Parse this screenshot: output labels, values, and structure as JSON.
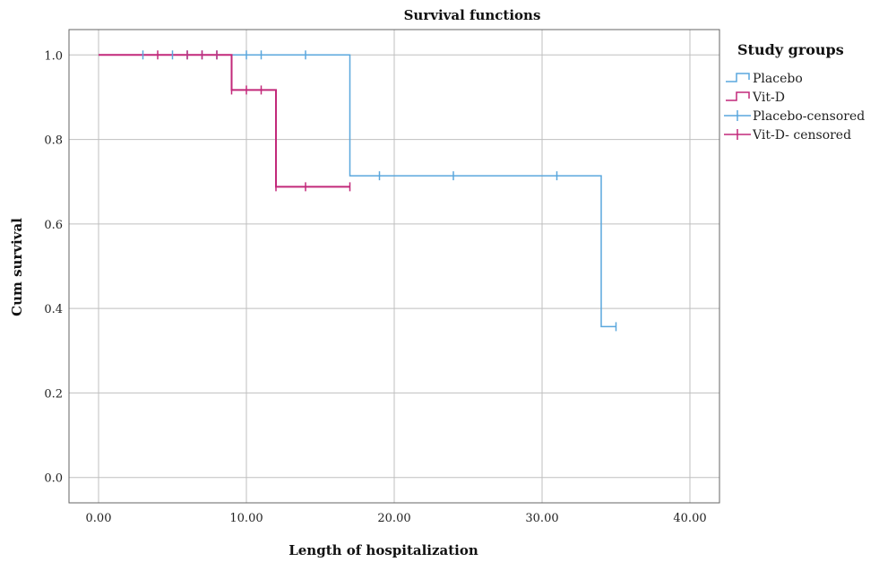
{
  "chart_data": {
    "type": "line",
    "title": "Survival functions",
    "xlabel": "Length of hospitalization",
    "ylabel": "Cum survival",
    "xlim": [
      -2,
      42
    ],
    "ylim": [
      -0.06,
      1.06
    ],
    "x_ticks": [
      0,
      10,
      20,
      30,
      40
    ],
    "x_tick_labels": [
      "0.00",
      "10.00",
      "20.00",
      "30.00",
      "40.00"
    ],
    "y_ticks": [
      0,
      0.2,
      0.4,
      0.6,
      0.8,
      1.0
    ],
    "y_tick_labels": [
      "0.0",
      "0.2",
      "0.4",
      "0.6",
      "0.8",
      "1.0"
    ],
    "grid": true,
    "legend_title": "Study groups",
    "legend_position": "right",
    "series": [
      {
        "name": "Placebo",
        "color": "#5aa7dd",
        "step_points": [
          [
            0,
            1.0
          ],
          [
            17,
            1.0
          ],
          [
            17,
            0.714
          ],
          [
            34,
            0.714
          ],
          [
            34,
            0.357
          ],
          [
            35,
            0.357
          ]
        ],
        "censored_name": "Placebo-censored",
        "censored": [
          [
            3,
            1.0
          ],
          [
            5,
            1.0
          ],
          [
            6,
            1.0
          ],
          [
            7,
            1.0
          ],
          [
            8,
            1.0
          ],
          [
            10,
            1.0
          ],
          [
            11,
            1.0
          ],
          [
            14,
            1.0
          ],
          [
            19,
            0.714
          ],
          [
            24,
            0.714
          ],
          [
            31,
            0.714
          ],
          [
            35,
            0.357
          ]
        ]
      },
      {
        "name": "Vit-D",
        "color": "#c2297a",
        "step_points": [
          [
            0,
            1.0
          ],
          [
            9,
            1.0
          ],
          [
            9,
            0.917
          ],
          [
            12,
            0.917
          ],
          [
            12,
            0.688
          ],
          [
            17,
            0.688
          ]
        ],
        "censored_name": "Vit-D- censored",
        "censored": [
          [
            4,
            1.0
          ],
          [
            6,
            1.0
          ],
          [
            7,
            1.0
          ],
          [
            8,
            1.0
          ],
          [
            9,
            0.917
          ],
          [
            10,
            0.917
          ],
          [
            11,
            0.917
          ],
          [
            12,
            0.688
          ],
          [
            14,
            0.688
          ],
          [
            17,
            0.688
          ]
        ]
      }
    ]
  }
}
